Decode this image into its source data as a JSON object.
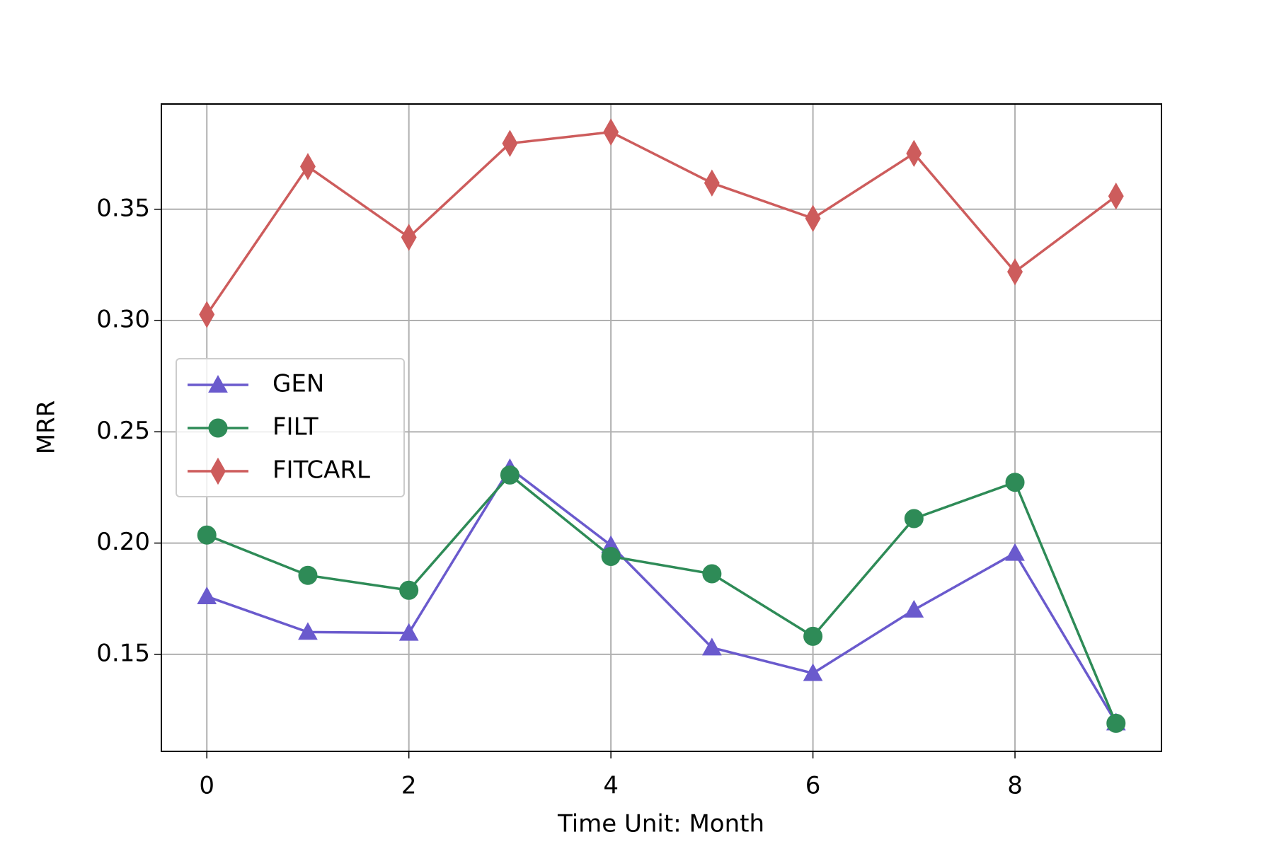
{
  "chart_data": {
    "type": "line",
    "x_label": "Time Unit: Month",
    "y_label": "MRR",
    "x": [
      0,
      1,
      2,
      3,
      4,
      5,
      6,
      7,
      8,
      9
    ],
    "series": [
      {
        "name": "GEN",
        "color": "#6a5acd",
        "marker": "triangle",
        "values": [
          0.176,
          0.16,
          0.1596,
          0.2336,
          0.199,
          0.153,
          0.1415,
          0.17,
          0.1955,
          0.1193
        ]
      },
      {
        "name": "FILT",
        "color": "#2e8b57",
        "marker": "circle",
        "values": [
          0.2036,
          0.1855,
          0.1788,
          0.2306,
          0.194,
          0.1862,
          0.1581,
          0.211,
          0.2273,
          0.119
        ]
      },
      {
        "name": "FITCARL",
        "color": "#cd5c5c",
        "marker": "diamond",
        "values": [
          0.3027,
          0.3692,
          0.3374,
          0.3796,
          0.3847,
          0.3618,
          0.3459,
          0.3751,
          0.3219,
          0.3559
        ]
      }
    ],
    "xlim": [
      -0.45,
      9.45
    ],
    "ylim": [
      0.1064,
      0.3973
    ],
    "xticks": [
      0,
      2,
      4,
      6,
      8
    ],
    "yticks": [
      0.15,
      {
        "value": 0.2,
        "label": "0.20"
      },
      0.25,
      {
        "value": 0.3,
        "label": "0.30"
      },
      0.35
    ],
    "grid": true,
    "legend": "center left"
  }
}
